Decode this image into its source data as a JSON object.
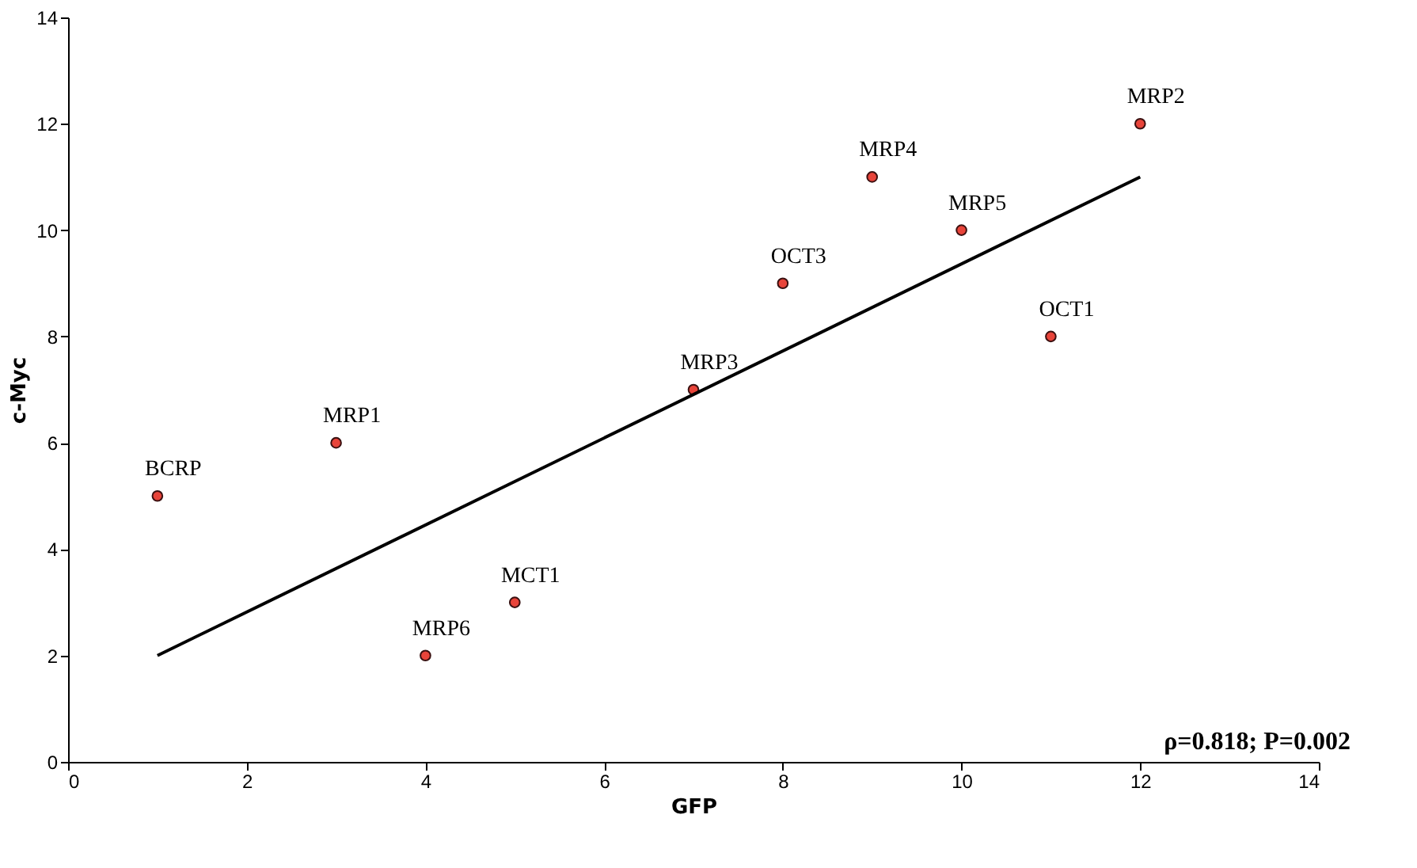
{
  "chart_data": {
    "type": "scatter",
    "xlabel": "GFP",
    "ylabel": "c-Myc",
    "xlim": [
      0,
      14
    ],
    "ylim": [
      0,
      14
    ],
    "xticks": [
      0,
      2,
      4,
      6,
      8,
      10,
      12,
      14
    ],
    "yticks": [
      0,
      2,
      4,
      6,
      8,
      10,
      12,
      14
    ],
    "grid": false,
    "series": [
      {
        "marker": "circle",
        "color": "#e8443a",
        "x": [
          1,
          3,
          4,
          5,
          7,
          8,
          9,
          10,
          11,
          12
        ],
        "values": [
          5,
          6,
          2,
          3,
          7,
          9,
          11,
          10,
          8,
          12
        ]
      },
      {
        "type": "line",
        "marker": "none",
        "color": "#000000",
        "x": [
          1,
          12
        ],
        "values": [
          2,
          11
        ]
      }
    ],
    "annotations": [
      {
        "text": "BCRP",
        "x": 1,
        "y": 5
      },
      {
        "text": "MRP1",
        "x": 3,
        "y": 6
      },
      {
        "text": "MRP6",
        "x": 4,
        "y": 2
      },
      {
        "text": "MCT1",
        "x": 5,
        "y": 3
      },
      {
        "text": "MRP3",
        "x": 7,
        "y": 7
      },
      {
        "text": "OCT3",
        "x": 8,
        "y": 9
      },
      {
        "text": "MRP4",
        "x": 9,
        "y": 11
      },
      {
        "text": "MRP5",
        "x": 10,
        "y": 10
      },
      {
        "text": "OCT1",
        "x": 11,
        "y": 8
      },
      {
        "text": "MRP2",
        "x": 12,
        "y": 12
      },
      "ρ=0.818; P=0.002"
    ]
  }
}
